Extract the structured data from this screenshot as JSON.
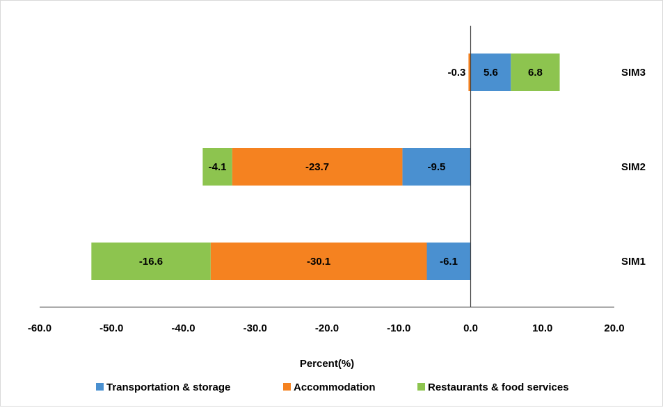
{
  "chart_data": {
    "type": "bar",
    "orientation": "horizontal",
    "stacked": true,
    "categories": [
      "SIM3",
      "SIM2",
      "SIM1"
    ],
    "series": [
      {
        "name": "Transportation & storage",
        "color": "#4a90d0",
        "values": [
          5.6,
          -9.5,
          -6.1
        ]
      },
      {
        "name": "Accommodation",
        "color": "#f58220",
        "values": [
          -0.3,
          -23.7,
          -30.1
        ]
      },
      {
        "name": "Restaurants & food services",
        "color": "#8dc44f",
        "values": [
          6.8,
          -4.1,
          -16.6
        ]
      }
    ],
    "data_labels": [
      [
        "5.6",
        "-9.5",
        "-6.1"
      ],
      [
        "-0.3",
        "-23.7",
        "-30.1"
      ],
      [
        "6.8",
        "-4.1",
        "-16.6"
      ]
    ],
    "xlabel": "Percent(%)",
    "xlim": [
      -60,
      20
    ],
    "xticks": [
      -60,
      -50,
      -40,
      -30,
      -20,
      -10,
      0,
      10,
      20
    ],
    "xtick_labels": [
      "-60.0",
      "-50.0",
      "-40.0",
      "-30.0",
      "-20.0",
      "-10.0",
      "0.0",
      "10.0",
      "20.0"
    ],
    "grid": false,
    "legend_position": "bottom"
  }
}
